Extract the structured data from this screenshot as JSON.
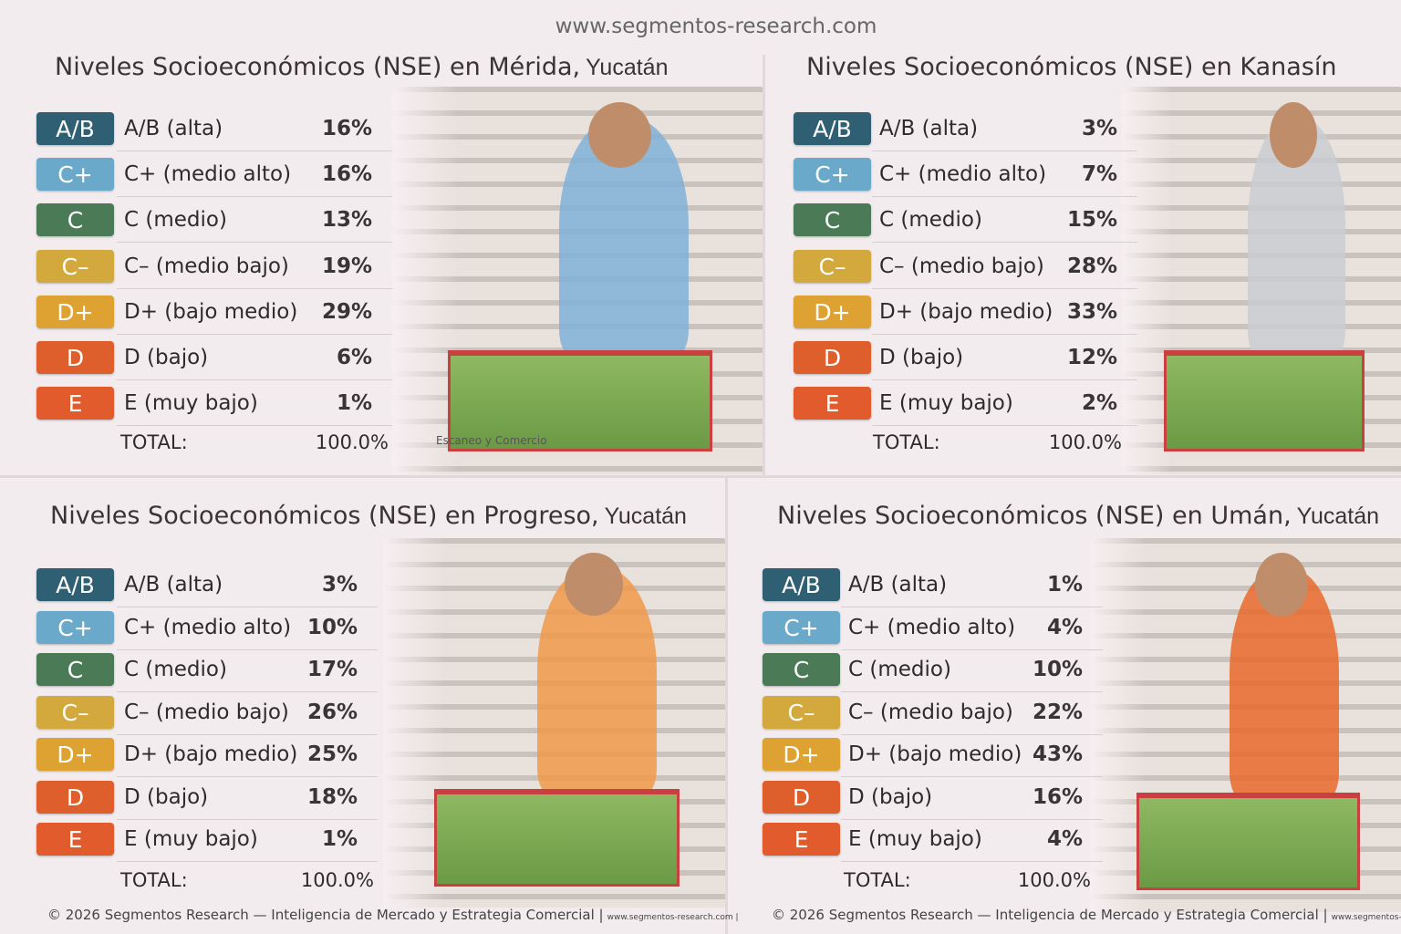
{
  "header": {
    "url": "www.segmentos-research.com"
  },
  "panels": [
    {
      "title": "Niveles Socioeconómicos (NSE) en Mérida,",
      "title_suffix": "Yucatán",
      "rows": [
        [
          "A/B",
          "A/B (alta)",
          "16%"
        ],
        [
          "C+",
          "C+ (medio alto)",
          "16%"
        ],
        [
          "C",
          "C (medio)",
          "13%"
        ],
        [
          "C–",
          "C– (medio bajo)",
          "19%"
        ],
        [
          "D+",
          "D+ (bajo medio)",
          "29%"
        ],
        [
          "D",
          "D (bajo)",
          "6%"
        ],
        [
          "E",
          "E (muy bajo)",
          "1%"
        ]
      ],
      "total_label": "TOTAL:",
      "total": "100.0%",
      "caption": "Escaneo y Comercio"
    },
    {
      "title": "Niveles Socioeconómicos (NSE) en Kanasín",
      "rows": [
        [
          "A/B",
          "A/B (alta)",
          "3%"
        ],
        [
          "C+",
          "C+ (medio alto)",
          "7%"
        ],
        [
          "C",
          "C (medio)",
          "15%"
        ],
        [
          "C–",
          "C– (medio bajo)",
          "28%"
        ],
        [
          "D+",
          "D+ (bajo medio)",
          "33%"
        ],
        [
          "D",
          "D (bajo)",
          "12%"
        ],
        [
          "E",
          "E (muy bajo)",
          "2%"
        ]
      ],
      "total_label": "TOTAL:",
      "total": "100.0%"
    },
    {
      "title": "Niveles Socioeconómicos (NSE) en Progreso,",
      "title_suffix": "Yucatán",
      "rows": [
        [
          "A/B",
          "A/B (alta)",
          "3%"
        ],
        [
          "C+",
          "C+ (medio alto)",
          "10%"
        ],
        [
          "C",
          "C (medio)",
          "17%"
        ],
        [
          "C–",
          "C– (medio bajo)",
          "26%"
        ],
        [
          "D+",
          "D+ (bajo medio)",
          "25%"
        ],
        [
          "D",
          "D (bajo)",
          "18%"
        ],
        [
          "E",
          "E (muy bajo)",
          "1%"
        ]
      ],
      "total_label": "TOTAL:",
      "total": "100.0%"
    },
    {
      "title": "Niveles Socioeconómicos (NSE) en Umán,",
      "title_suffix": "Yucatán",
      "rows": [
        [
          "A/B",
          "A/B (alta)",
          "1%"
        ],
        [
          "C+",
          "C+ (medio alto)",
          "4%"
        ],
        [
          "C",
          "C (medio)",
          "10%"
        ],
        [
          "C–",
          "C– (medio bajo)",
          "22%"
        ],
        [
          "D+",
          "D+ (bajo medio)",
          "43%"
        ],
        [
          "D",
          "D (bajo)",
          "16%"
        ],
        [
          "E",
          "E (muy bajo)",
          "4%"
        ]
      ],
      "total_label": "TOTAL:",
      "total": "100.0%"
    }
  ],
  "footers": [
    {
      "text": "© 2026 Segmentos Research — Inteligencia de Mercado y Estrategia Comercial |",
      "site": "www.segmentos-research.com |"
    },
    {
      "text": "© 2026 Segmentos Research — Inteligencia de Mercado y Estrategia Comercial |",
      "site": "www.segmentos-research.com |"
    }
  ]
}
